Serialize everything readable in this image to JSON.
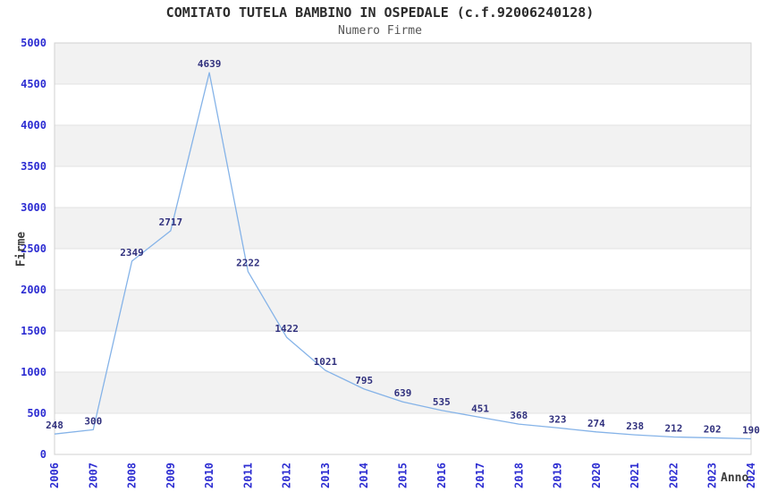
{
  "title": "COMITATO TUTELA BAMBINO IN OSPEDALE (c.f.92006240128)",
  "subtitle": "Numero Firme",
  "colors": {
    "tick_label": "#2d2dd2",
    "data_label": "#31317e",
    "line": "#85b3e8",
    "band": "#f2f2f2",
    "grid": "#e2e2e2",
    "border": "#d0d0d0",
    "title": "#2b2b2b",
    "subtitle": "#555555",
    "axis_label": "#3c3c3c"
  },
  "chart_data": {
    "type": "line",
    "title": "COMITATO TUTELA BAMBINO IN OSPEDALE (c.f.92006240128)",
    "subtitle": "Numero Firme",
    "xlabel": "Anno",
    "ylabel": "Firme",
    "x": [
      2006,
      2007,
      2008,
      2009,
      2010,
      2011,
      2012,
      2013,
      2014,
      2015,
      2016,
      2017,
      2018,
      2019,
      2020,
      2021,
      2022,
      2023,
      2024
    ],
    "values": [
      248,
      300,
      2349,
      2717,
      4639,
      2222,
      1422,
      1021,
      795,
      639,
      535,
      451,
      368,
      323,
      274,
      238,
      212,
      202,
      190
    ],
    "ylim": [
      0,
      5000
    ],
    "ytick_step": 500,
    "grid": "horizontal-bands-alternating",
    "legend": "none",
    "point_labels_visible": true
  }
}
